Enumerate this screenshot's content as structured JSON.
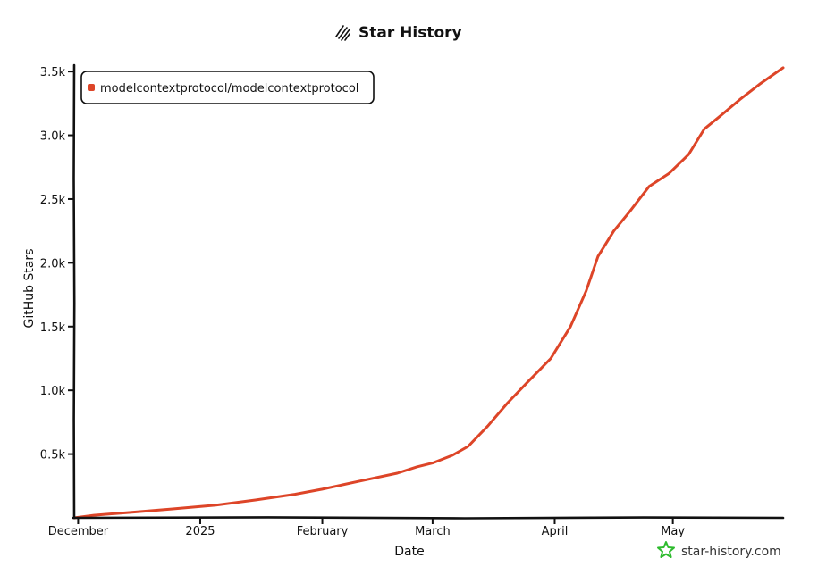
{
  "chart_data": {
    "type": "line",
    "title": "Star History",
    "xlabel": "Date",
    "ylabel": "GitHub Stars",
    "x_ticks": [
      {
        "date": "2024-12-01",
        "label": "December"
      },
      {
        "date": "2025-01-01",
        "label": "2025"
      },
      {
        "date": "2025-02-01",
        "label": "February"
      },
      {
        "date": "2025-03-01",
        "label": "March"
      },
      {
        "date": "2025-04-01",
        "label": "April"
      },
      {
        "date": "2025-05-01",
        "label": "May"
      }
    ],
    "xlim": [
      "2024-11-30",
      "2025-05-29"
    ],
    "y_ticks": [
      {
        "value": 500,
        "label": "0.5k"
      },
      {
        "value": 1000,
        "label": "1.0k"
      },
      {
        "value": 1500,
        "label": "1.5k"
      },
      {
        "value": 2000,
        "label": "2.0k"
      },
      {
        "value": 2500,
        "label": "2.5k"
      },
      {
        "value": 3000,
        "label": "3.0k"
      },
      {
        "value": 3500,
        "label": "3.5k"
      }
    ],
    "ylim": [
      0,
      3550
    ],
    "grid": false,
    "legend_position": "top-left",
    "series": [
      {
        "name": "modelcontextprotocol/modelcontextprotocol",
        "color": "#dd4528",
        "points": [
          {
            "date": "2024-11-30",
            "stars": 0
          },
          {
            "date": "2024-12-05",
            "stars": 20
          },
          {
            "date": "2024-12-15",
            "stars": 45
          },
          {
            "date": "2024-12-25",
            "stars": 70
          },
          {
            "date": "2025-01-05",
            "stars": 100
          },
          {
            "date": "2025-01-15",
            "stars": 140
          },
          {
            "date": "2025-01-25",
            "stars": 185
          },
          {
            "date": "2025-02-01",
            "stars": 225
          },
          {
            "date": "2025-02-10",
            "stars": 285
          },
          {
            "date": "2025-02-20",
            "stars": 350
          },
          {
            "date": "2025-02-25",
            "stars": 400
          },
          {
            "date": "2025-03-01",
            "stars": 430
          },
          {
            "date": "2025-03-06",
            "stars": 490
          },
          {
            "date": "2025-03-10",
            "stars": 560
          },
          {
            "date": "2025-03-15",
            "stars": 720
          },
          {
            "date": "2025-03-20",
            "stars": 900
          },
          {
            "date": "2025-03-25",
            "stars": 1060
          },
          {
            "date": "2025-03-31",
            "stars": 1250
          },
          {
            "date": "2025-04-05",
            "stars": 1500
          },
          {
            "date": "2025-04-09",
            "stars": 1780
          },
          {
            "date": "2025-04-12",
            "stars": 2050
          },
          {
            "date": "2025-04-16",
            "stars": 2250
          },
          {
            "date": "2025-04-20",
            "stars": 2400
          },
          {
            "date": "2025-04-25",
            "stars": 2600
          },
          {
            "date": "2025-04-30",
            "stars": 2700
          },
          {
            "date": "2025-05-05",
            "stars": 2850
          },
          {
            "date": "2025-05-09",
            "stars": 3050
          },
          {
            "date": "2025-05-13",
            "stars": 3150
          },
          {
            "date": "2025-05-18",
            "stars": 3280
          },
          {
            "date": "2025-05-23",
            "stars": 3400
          },
          {
            "date": "2025-05-29",
            "stars": 3530
          }
        ]
      }
    ]
  },
  "watermark": {
    "text": "star-history.com",
    "icon": "star-history-logo-icon",
    "color": "#2ebb2e"
  },
  "title_icon": "scribble-logo-icon"
}
